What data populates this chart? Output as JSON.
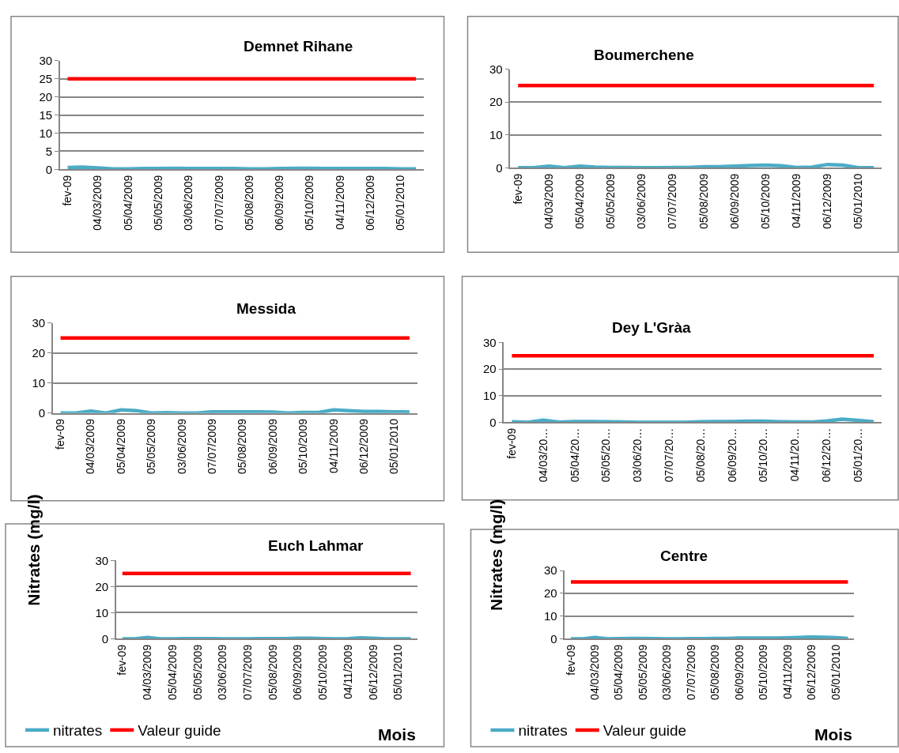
{
  "chart_data": [
    {
      "type": "line",
      "title": "Demnet Rihane",
      "categories": [
        "fev-09",
        null,
        "04/03/2009",
        null,
        "05/04/2009",
        null,
        "05/05/2009",
        null,
        "03/06/2009",
        null,
        "07/07/2009",
        null,
        "05/08/2009",
        null,
        "06/09/2009",
        null,
        "05/10/2009",
        null,
        "04/11/2009",
        null,
        "06/12/2009",
        null,
        "05/01/2010",
        null
      ],
      "series": [
        {
          "color": "#4bacc6",
          "values": [
            0.5,
            0.6,
            0.4,
            0.1,
            0.1,
            0.2,
            0.2,
            0.3,
            0.2,
            0.2,
            0.2,
            0.2,
            0.1,
            0.1,
            0.2,
            0.3,
            0.3,
            0.2,
            0.2,
            0.2,
            0.2,
            0.2,
            0.1,
            0.1
          ]
        },
        {
          "color": "#ff0000",
          "values": [
            25,
            25,
            25,
            25,
            25,
            25,
            25,
            25,
            25,
            25,
            25,
            25,
            25,
            25,
            25,
            25,
            25,
            25,
            25,
            25,
            25,
            25,
            25,
            25
          ]
        }
      ],
      "ylim": [
        0,
        30
      ],
      "yticks": [
        0,
        5,
        10,
        15,
        20,
        25,
        30
      ],
      "grid": "y"
    },
    {
      "type": "line",
      "title": "Boumerchene",
      "categories": [
        "fev-09",
        null,
        "04/03/2009",
        null,
        "05/04/2009",
        null,
        "05/05/2009",
        null,
        "03/06/2009",
        null,
        "07/07/2009",
        null,
        "05/08/2009",
        null,
        "06/09/2009",
        null,
        "05/10/2009",
        null,
        "04/11/2009",
        null,
        "06/12/2009",
        null,
        "05/01/2010",
        null
      ],
      "series": [
        {
          "color": "#4bacc6",
          "values": [
            0,
            0,
            0.5,
            0,
            0.5,
            0.2,
            0.1,
            0.1,
            0,
            0,
            0.1,
            0.1,
            0.3,
            0.3,
            0.5,
            0.7,
            0.8,
            0.6,
            0.1,
            0.2,
            1,
            0.8,
            0,
            0
          ]
        },
        {
          "color": "#ff0000",
          "values": [
            25,
            25,
            25,
            25,
            25,
            25,
            25,
            25,
            25,
            25,
            25,
            25,
            25,
            25,
            25,
            25,
            25,
            25,
            25,
            25,
            25,
            25,
            25,
            25
          ]
        }
      ],
      "ylim": [
        0,
        30
      ],
      "yticks": [
        0,
        10,
        20,
        30
      ],
      "grid": "y"
    },
    {
      "type": "line",
      "title": "Messida",
      "categories": [
        "fev-09",
        null,
        "04/03/2009",
        null,
        "05/04/2009",
        null,
        "05/05/2009",
        null,
        "03/06/2009",
        null,
        "07/07/2009",
        null,
        "05/08/2009",
        null,
        "06/09/2009",
        null,
        "05/10/2009",
        null,
        "04/11/2009",
        null,
        "06/12/2009",
        null,
        "05/01/2010",
        null
      ],
      "series": [
        {
          "color": "#4bacc6",
          "values": [
            0,
            0,
            0.6,
            0,
            1,
            0.8,
            0,
            0.1,
            0,
            0,
            0.4,
            0.4,
            0.4,
            0.4,
            0.3,
            0,
            0.2,
            0.2,
            1,
            0.8,
            0.5,
            0.5,
            0.4,
            0.3
          ]
        },
        {
          "color": "#ff0000",
          "values": [
            25,
            25,
            25,
            25,
            25,
            25,
            25,
            25,
            25,
            25,
            25,
            25,
            25,
            25,
            25,
            25,
            25,
            25,
            25,
            25,
            25,
            25,
            25,
            25
          ]
        }
      ],
      "ylim": [
        0,
        30
      ],
      "yticks": [
        0,
        10,
        20,
        30
      ],
      "grid": "y"
    },
    {
      "type": "line",
      "title": "Dey L'Gràa",
      "categories": [
        "fev-09",
        null,
        "04/03/20…",
        null,
        "05/04/20…",
        null,
        "05/05/20…",
        null,
        "03/06/20…",
        null,
        "07/07/20…",
        null,
        "05/08/20…",
        null,
        "06/09/20…",
        null,
        "05/10/20…",
        null,
        "04/11/20…",
        null,
        "06/12/20…",
        null,
        "05/01/20…",
        null
      ],
      "series": [
        {
          "color": "#4bacc6",
          "values": [
            0.2,
            0,
            0.8,
            0.1,
            0.3,
            0.3,
            0.2,
            0.1,
            0,
            0,
            0,
            0,
            0.2,
            0.3,
            0.3,
            0.4,
            0.4,
            0.2,
            0.1,
            0.1,
            0.5,
            1.2,
            0.7,
            0.2
          ]
        },
        {
          "color": "#ff0000",
          "values": [
            25,
            25,
            25,
            25,
            25,
            25,
            25,
            25,
            25,
            25,
            25,
            25,
            25,
            25,
            25,
            25,
            25,
            25,
            25,
            25,
            25,
            25,
            25,
            25
          ]
        }
      ],
      "ylim": [
        0,
        30
      ],
      "yticks": [
        0,
        10,
        20,
        30
      ],
      "grid": "y"
    },
    {
      "type": "line",
      "title": "Euch Lahmar",
      "xlabel": "Mois",
      "ylabel": "Nitrates (mg/l)",
      "categories": [
        "fev-09",
        null,
        "04/03/2009",
        null,
        "05/04/2009",
        null,
        "05/05/2009",
        null,
        "03/06/2009",
        null,
        "07/07/2009",
        null,
        "05/08/2009",
        null,
        "06/09/2009",
        null,
        "05/10/2009",
        null,
        "04/11/2009",
        null,
        "06/12/2009",
        null,
        "05/01/2010",
        null
      ],
      "series": [
        {
          "name": "nitrates",
          "color": "#4bacc6",
          "values": [
            0,
            0,
            0.5,
            0,
            0,
            0.1,
            0.1,
            0.1,
            0,
            0,
            0,
            0.1,
            0.1,
            0.1,
            0.2,
            0.2,
            0.1,
            0,
            0.1,
            0.4,
            0.2,
            0,
            0,
            0
          ]
        },
        {
          "name": "Valeur guide",
          "color": "#ff0000",
          "values": [
            25,
            25,
            25,
            25,
            25,
            25,
            25,
            25,
            25,
            25,
            25,
            25,
            25,
            25,
            25,
            25,
            25,
            25,
            25,
            25,
            25,
            25,
            25,
            25
          ]
        }
      ],
      "ylim": [
        0,
        30
      ],
      "yticks": [
        0,
        10,
        20,
        30
      ],
      "grid": "y",
      "legend": "bottom"
    },
    {
      "type": "line",
      "title": "Centre",
      "xlabel": "Mois",
      "ylabel": "Nitrates (mg/l)",
      "categories": [
        "fev-09",
        null,
        "04/03/2009",
        null,
        "05/04/2009",
        null,
        "05/05/2009",
        null,
        "03/06/2009",
        null,
        "07/07/2009",
        null,
        "05/08/2009",
        null,
        "06/09/2009",
        null,
        "05/10/2009",
        null,
        "04/11/2009",
        null,
        "06/12/2009",
        null,
        "05/01/2010",
        null
      ],
      "series": [
        {
          "name": "nitrates",
          "color": "#4bacc6",
          "values": [
            0,
            0,
            0.6,
            0,
            0.1,
            0.2,
            0.2,
            0.1,
            0,
            0,
            0.1,
            0.1,
            0.2,
            0.2,
            0.3,
            0.3,
            0.3,
            0.3,
            0.4,
            0.6,
            0.8,
            0.7,
            0.5,
            0.2
          ]
        },
        {
          "name": "Valeur guide",
          "color": "#ff0000",
          "values": [
            25,
            25,
            25,
            25,
            25,
            25,
            25,
            25,
            25,
            25,
            25,
            25,
            25,
            25,
            25,
            25,
            25,
            25,
            25,
            25,
            25,
            25,
            25,
            25
          ]
        }
      ],
      "ylim": [
        0,
        30
      ],
      "yticks": [
        0,
        10,
        20,
        30
      ],
      "grid": "y",
      "legend": "bottom"
    }
  ]
}
